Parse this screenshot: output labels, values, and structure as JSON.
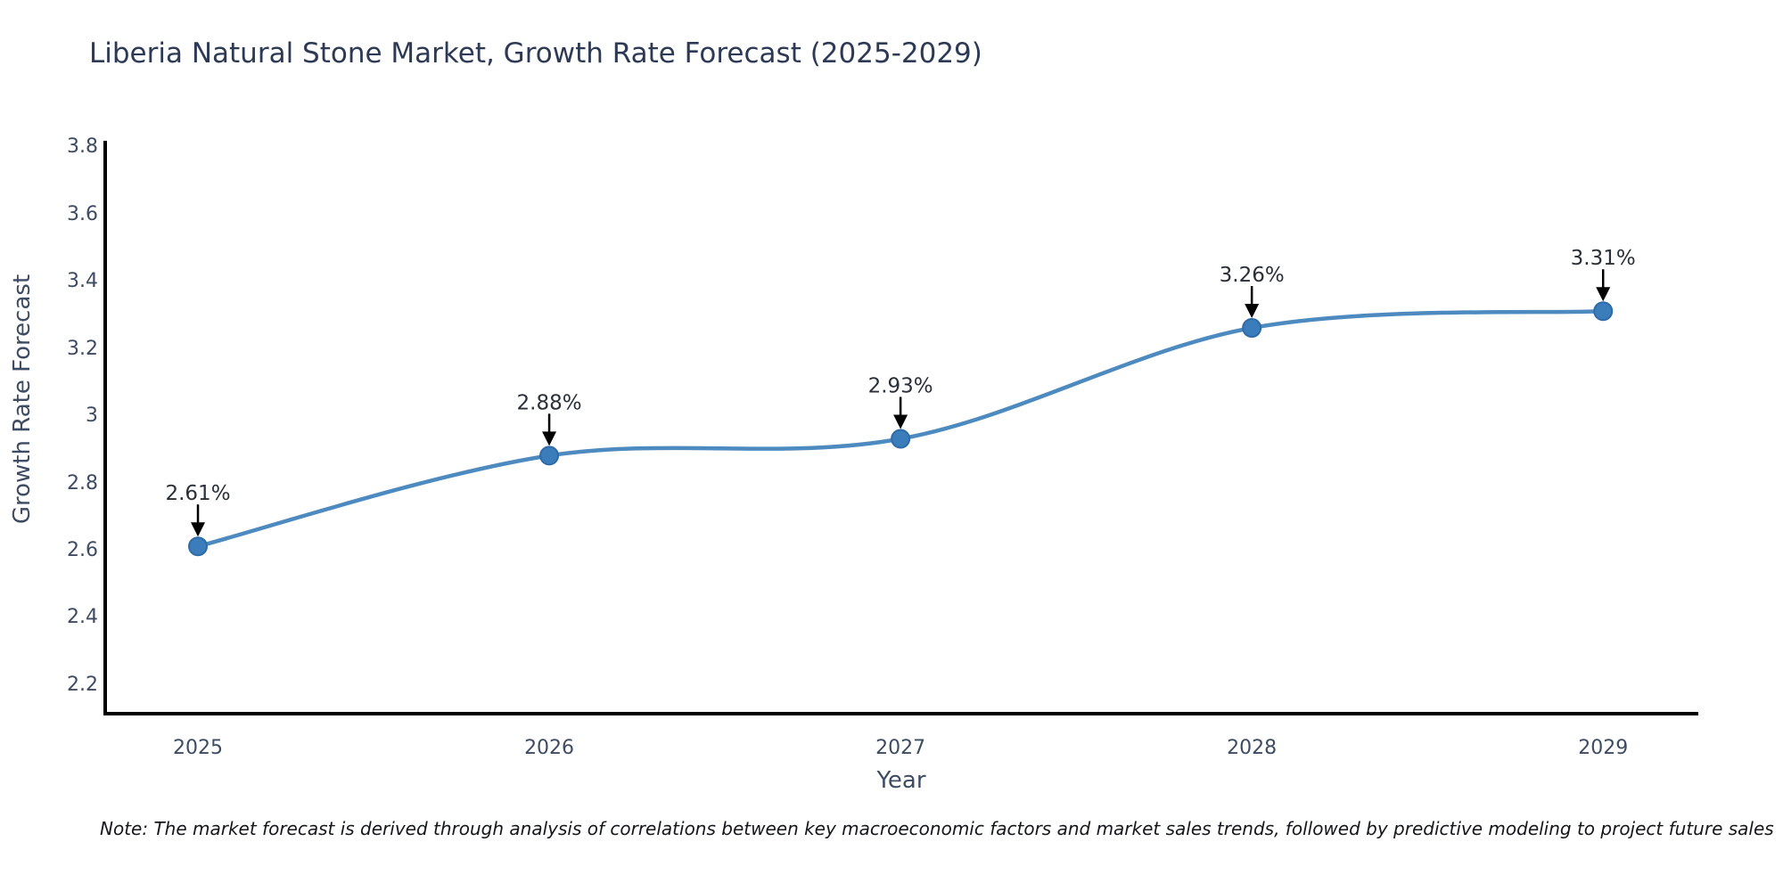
{
  "chart_data": {
    "type": "line",
    "title": "Liberia Natural Stone Market, Growth Rate Forecast (2025-2029)",
    "xlabel": "Year",
    "ylabel": "Growth Rate Forecast",
    "x": [
      2025,
      2026,
      2027,
      2028,
      2029
    ],
    "series": [
      {
        "name": "Growth Rate Forecast",
        "values": [
          2.61,
          2.88,
          2.93,
          3.26,
          3.31
        ]
      }
    ],
    "point_labels": [
      "2.61%",
      "2.88%",
      "2.93%",
      "3.26%",
      "3.31%"
    ],
    "x_tick_labels": [
      "2025",
      "2026",
      "2027",
      "2028",
      "2029"
    ],
    "y_ticks": [
      2.2,
      2.4,
      2.6,
      2.8,
      3.0,
      3.2,
      3.4,
      3.6,
      3.8
    ],
    "y_tick_labels": [
      "2.2",
      "2.4",
      "2.6",
      "2.8",
      "3",
      "3.2",
      "3.4",
      "3.6",
      "3.8"
    ],
    "xlim": [
      2024.736,
      2029.271
    ],
    "ylim": [
      2.112,
      3.817
    ],
    "grid": false,
    "legend": null,
    "curve": "smooth",
    "line_color": "#4d8ac0",
    "marker_color": "#3b7cba",
    "marker_edge_color": "#2e6ba8",
    "arrow_color": "#000000",
    "spine_color": "#000000",
    "note": "Note: The market forecast is derived through analysis of correlations between key macroeconomic factors and market sales trends, followed by predictive modeling to project future sales"
  },
  "colors": {
    "title_text": "#2d3a56",
    "axis_text": "#3e4c63",
    "annotation_text": "#2a2f38",
    "note_text": "#14171c"
  }
}
